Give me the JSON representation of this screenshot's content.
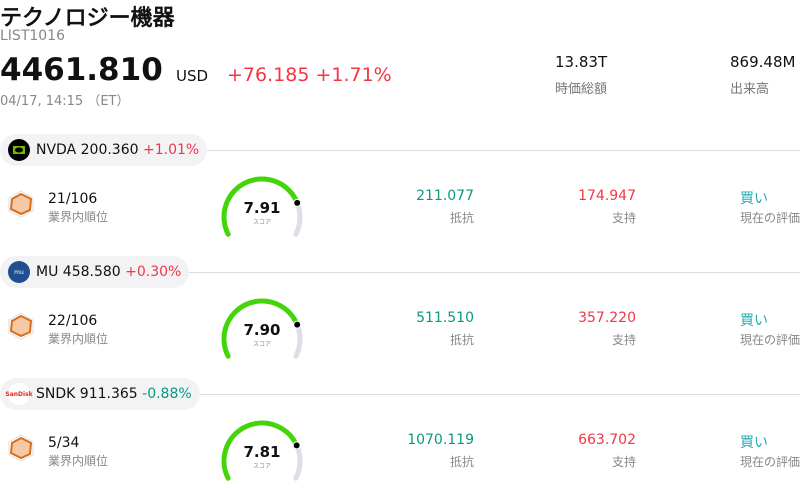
{
  "header": {
    "title": "テクノロジー機器",
    "list_id": "LIST1016",
    "price": "4461.810",
    "currency": "USD",
    "change": "+76.185",
    "change_pct": "+1.71%",
    "timestamp": "04/17, 14:15 （ET）",
    "market_cap": "13.83T",
    "market_cap_label": "時価総額",
    "volume": "869.48M",
    "volume_label": "出来高"
  },
  "labels": {
    "rank": "業界内順位",
    "score": "スコア",
    "resistance": "抵抗",
    "support": "支持",
    "evaluation": "現在の評価"
  },
  "colors": {
    "up": "#f23645",
    "down": "#089981",
    "gauge": "#44d40a",
    "rating": "#22aab4"
  },
  "stocks": [
    {
      "ticker": "NVDA",
      "price": "200.360",
      "change_pct": "+1.01%",
      "rank": "21/106",
      "score": "7.91",
      "score_value": 7.91,
      "resistance": "211.077",
      "support": "174.947",
      "rating": "買い"
    },
    {
      "ticker": "MU",
      "price": "458.580",
      "change_pct": "+0.30%",
      "rank": "22/106",
      "score": "7.90",
      "score_value": 7.9,
      "resistance": "511.510",
      "support": "357.220",
      "rating": "買い"
    },
    {
      "ticker": "SNDK",
      "price": "911.365",
      "change_pct": "-0.88%",
      "rank": "5/34",
      "score": "7.81",
      "score_value": 7.81,
      "resistance": "1070.119",
      "support": "663.702",
      "rating": "買い"
    }
  ]
}
